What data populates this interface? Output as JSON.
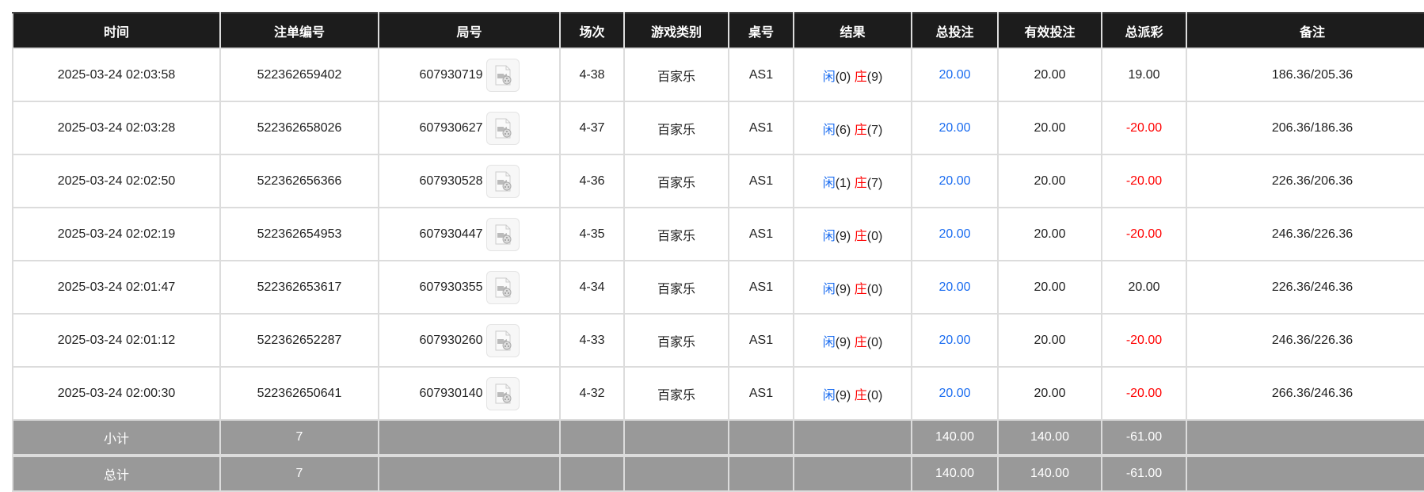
{
  "colors": {
    "header_bg": "#1c1c1c",
    "total_bg": "#999999",
    "blue": "#1a6cf0",
    "red": "#ff0000"
  },
  "headers": [
    "时间",
    "注单编号",
    "局号",
    "场次",
    "游戏类别",
    "桌号",
    "结果",
    "总投注",
    "有效投注",
    "总派彩",
    "备注"
  ],
  "rows": [
    {
      "time": "2025-03-24 02:03:58",
      "bet_id": "522362659402",
      "round": "607930719",
      "session": "4-38",
      "game": "百家乐",
      "table": "AS1",
      "player_label": "闲",
      "player": "(0)",
      "banker_label": "庄",
      "banker": "(9)",
      "total_bet": "20.00",
      "valid_bet": "20.00",
      "payout": "19.00",
      "payout_negative": false,
      "note": "186.36/205.36"
    },
    {
      "time": "2025-03-24 02:03:28",
      "bet_id": "522362658026",
      "round": "607930627",
      "session": "4-37",
      "game": "百家乐",
      "table": "AS1",
      "player_label": "闲",
      "player": "(6)",
      "banker_label": "庄",
      "banker": "(7)",
      "total_bet": "20.00",
      "valid_bet": "20.00",
      "payout": "-20.00",
      "payout_negative": true,
      "note": "206.36/186.36"
    },
    {
      "time": "2025-03-24 02:02:50",
      "bet_id": "522362656366",
      "round": "607930528",
      "session": "4-36",
      "game": "百家乐",
      "table": "AS1",
      "player_label": "闲",
      "player": "(1)",
      "banker_label": "庄",
      "banker": "(7)",
      "total_bet": "20.00",
      "valid_bet": "20.00",
      "payout": "-20.00",
      "payout_negative": true,
      "note": "226.36/206.36"
    },
    {
      "time": "2025-03-24 02:02:19",
      "bet_id": "522362654953",
      "round": "607930447",
      "session": "4-35",
      "game": "百家乐",
      "table": "AS1",
      "player_label": "闲",
      "player": "(9)",
      "banker_label": "庄",
      "banker": "(0)",
      "total_bet": "20.00",
      "valid_bet": "20.00",
      "payout": "-20.00",
      "payout_negative": true,
      "note": "246.36/226.36"
    },
    {
      "time": "2025-03-24 02:01:47",
      "bet_id": "522362653617",
      "round": "607930355",
      "session": "4-34",
      "game": "百家乐",
      "table": "AS1",
      "player_label": "闲",
      "player": "(9)",
      "banker_label": "庄",
      "banker": "(0)",
      "total_bet": "20.00",
      "valid_bet": "20.00",
      "payout": "20.00",
      "payout_negative": false,
      "note": "226.36/246.36"
    },
    {
      "time": "2025-03-24 02:01:12",
      "bet_id": "522362652287",
      "round": "607930260",
      "session": "4-33",
      "game": "百家乐",
      "table": "AS1",
      "player_label": "闲",
      "player": "(9)",
      "banker_label": "庄",
      "banker": "(0)",
      "total_bet": "20.00",
      "valid_bet": "20.00",
      "payout": "-20.00",
      "payout_negative": true,
      "note": "246.36/226.36"
    },
    {
      "time": "2025-03-24 02:00:30",
      "bet_id": "522362650641",
      "round": "607930140",
      "session": "4-32",
      "game": "百家乐",
      "table": "AS1",
      "player_label": "闲",
      "player": "(9)",
      "banker_label": "庄",
      "banker": "(0)",
      "total_bet": "20.00",
      "valid_bet": "20.00",
      "payout": "-20.00",
      "payout_negative": true,
      "note": "266.36/246.36"
    }
  ],
  "totals": [
    {
      "label": "小计",
      "count": "7",
      "total_bet": "140.00",
      "valid_bet": "140.00",
      "payout": "-61.00"
    },
    {
      "label": "总计",
      "count": "7",
      "total_bet": "140.00",
      "valid_bet": "140.00",
      "payout": "-61.00"
    }
  ],
  "icons": {
    "replay": "video-replay-icon"
  }
}
